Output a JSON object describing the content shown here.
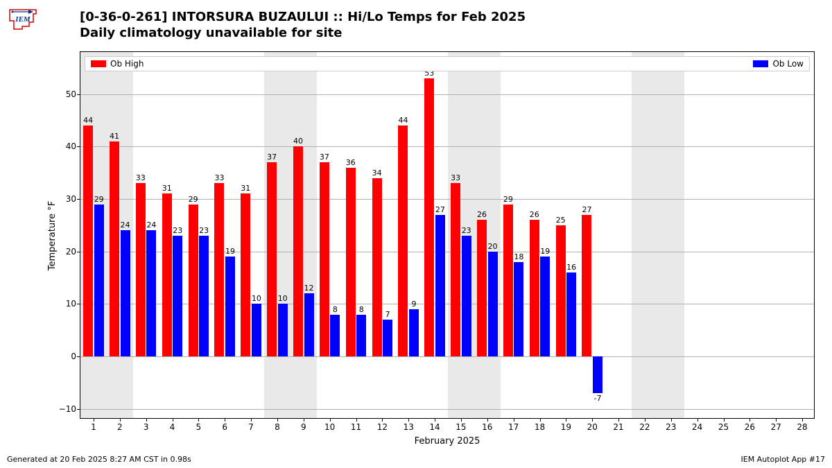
{
  "title_line1": "[0-36-0-261] INTORSURA BUZAULUI :: Hi/Lo Temps for Feb 2025",
  "title_line2": "Daily climatology unavailable for site",
  "ylabel": "Temperature °F",
  "xlabel": "February 2025",
  "footer_left": "Generated at 20 Feb 2025 8:27 AM CST in 0.98s",
  "footer_right": "IEM Autoplot App #17",
  "legend": {
    "high": "Ob High",
    "low": "Ob Low"
  },
  "colors": {
    "high": "#ff0000",
    "low": "#0000ff",
    "background": "#ffffff",
    "weekend": "#e9e9e9",
    "grid": "#b0b0b0",
    "text": "#000000"
  },
  "typography": {
    "title_fontsize": 18,
    "axis_label_fontsize": 13,
    "tick_fontsize": 12,
    "bar_label_fontsize": 11,
    "legend_fontsize": 12,
    "footer_fontsize": 11
  },
  "chart": {
    "type": "bar",
    "x_days": [
      1,
      2,
      3,
      4,
      5,
      6,
      7,
      8,
      9,
      10,
      11,
      12,
      13,
      14,
      15,
      16,
      17,
      18,
      19,
      20,
      21,
      22,
      23,
      24,
      25,
      26,
      27,
      28
    ],
    "weekend_pairs": [
      [
        1,
        2
      ],
      [
        8,
        9
      ],
      [
        15,
        16
      ],
      [
        22,
        23
      ]
    ],
    "highs": [
      44,
      41,
      33,
      31,
      29,
      33,
      31,
      37,
      40,
      37,
      36,
      34,
      44,
      53,
      33,
      26,
      29,
      26,
      25,
      27,
      null,
      null,
      null,
      null,
      null,
      null,
      null,
      null
    ],
    "lows": [
      29,
      24,
      24,
      23,
      23,
      19,
      10,
      10,
      12,
      8,
      8,
      7,
      9,
      27,
      23,
      20,
      18,
      19,
      16,
      -7,
      null,
      null,
      null,
      null,
      null,
      null,
      null,
      null
    ],
    "ylim": [
      -12,
      58
    ],
    "yticks": [
      -10,
      0,
      10,
      20,
      30,
      40,
      50
    ],
    "xlim": [
      0.5,
      28.5
    ],
    "bar_width": 0.37,
    "bar_gap": 0.04
  }
}
